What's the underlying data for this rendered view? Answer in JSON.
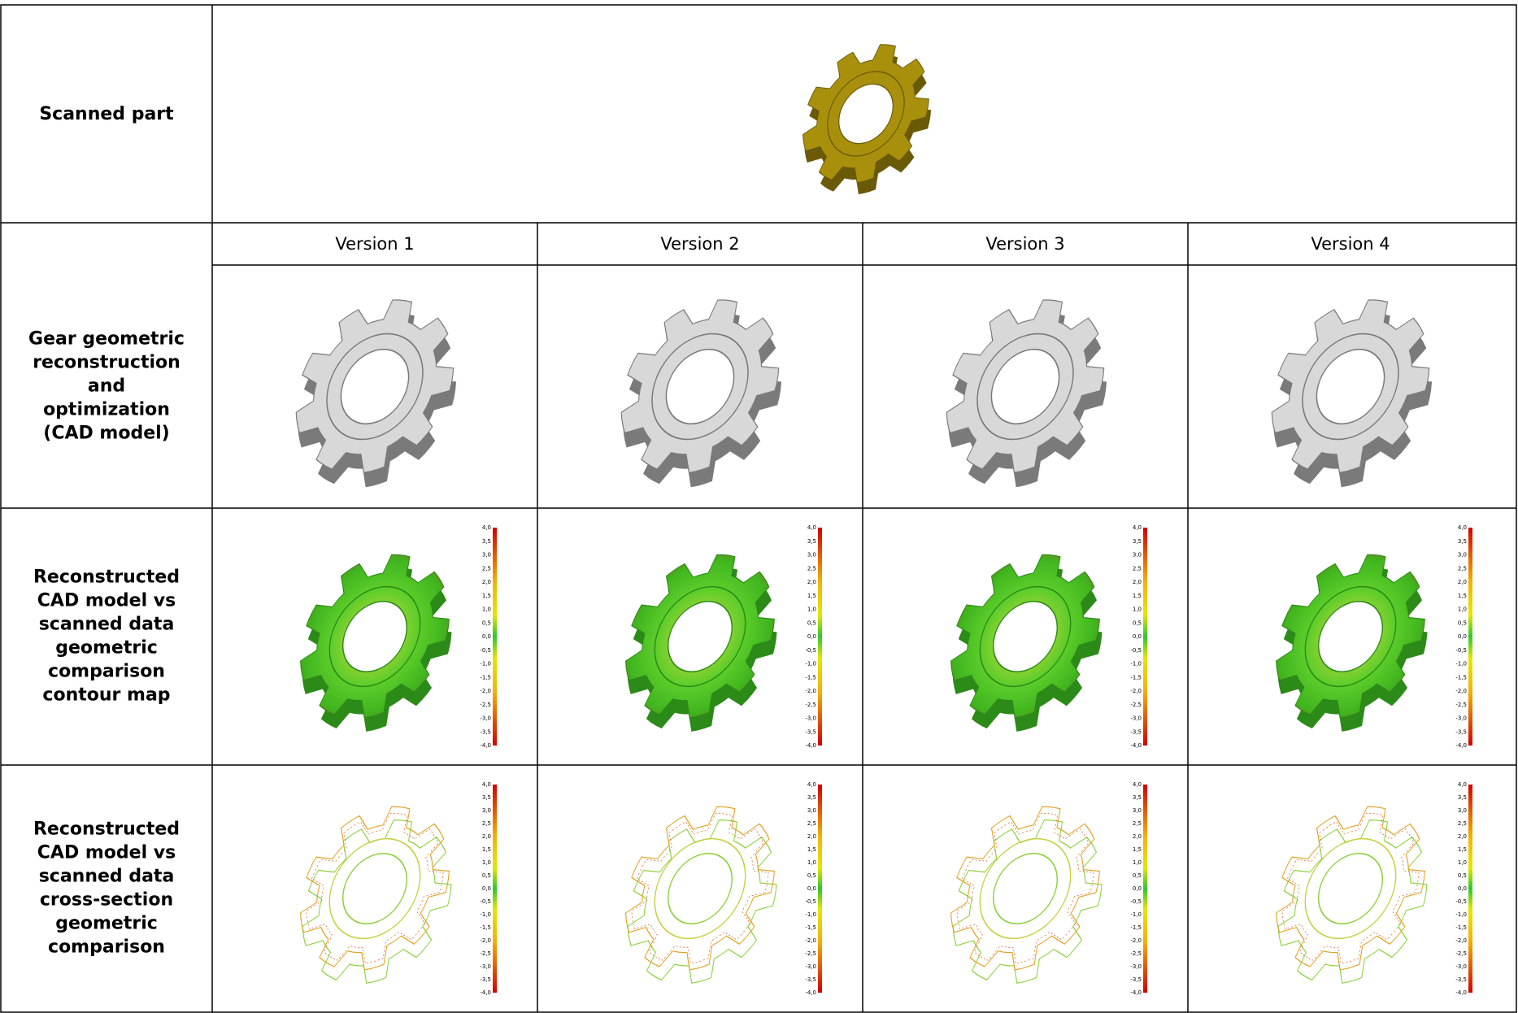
{
  "table": {
    "header": {
      "label": [
        "Scanned part"
      ]
    },
    "versions": [
      "Version 1",
      "Version 2",
      "Version 3",
      "Version 4"
    ],
    "rows": [
      {
        "label": [
          "Gear geometric",
          "reconstruction",
          "and",
          "optimization",
          "(CAD model)"
        ]
      },
      {
        "label": [
          "Reconstructed",
          "CAD model vs",
          "scanned data",
          "geometric",
          "comparison",
          "contour map"
        ]
      },
      {
        "label": [
          "Reconstructed",
          "CAD model vs",
          "scanned data",
          "cross-section",
          "geometric",
          "comparison"
        ]
      }
    ]
  },
  "scale": {
    "labels": [
      "4,0",
      "3,5",
      "3,0",
      "2,5",
      "2,0",
      "1,5",
      "1,0",
      "0,5",
      "0,0",
      "-0,5",
      "-1,0",
      "-1,5",
      "-2,0",
      "-2,5",
      "-3,0",
      "-3,5",
      "-4,0"
    ]
  }
}
